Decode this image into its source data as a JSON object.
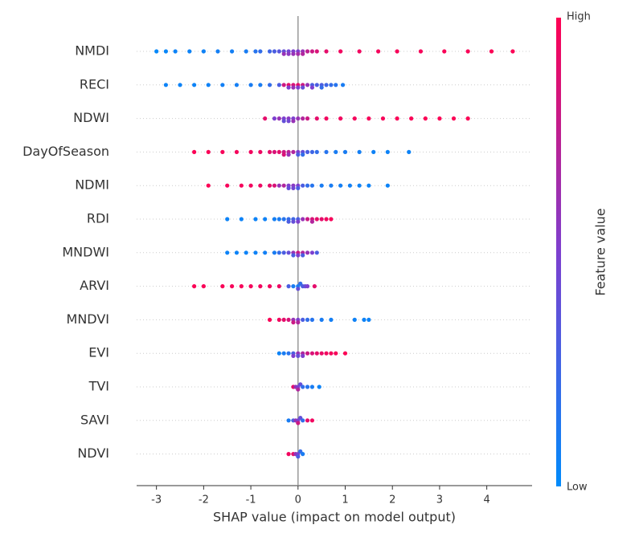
{
  "chart_data": {
    "type": "beeswarm",
    "x_label": "SHAP value (impact on model output)",
    "colorbar_label": "Feature value",
    "colorbar_high": "High",
    "colorbar_low": "Low",
    "colormap": [
      "#008bfb",
      "#7d3fcf",
      "#ff0052"
    ],
    "xlim": [
      -3.42,
      4.96
    ],
    "xticks": [
      -3,
      -2,
      -1,
      0,
      1,
      2,
      3,
      4
    ],
    "grid": true,
    "series": [
      {
        "name": "NMDI",
        "values": [
          -3.0,
          -2.8,
          -2.6,
          -2.3,
          -2.0,
          -1.7,
          -1.4,
          -1.1,
          -0.9,
          -0.8,
          -0.6,
          -0.5,
          -0.4,
          -0.3,
          -0.3,
          -0.2,
          -0.2,
          -0.1,
          -0.1,
          0,
          0,
          0.1,
          0.1,
          0.2,
          0.3,
          0.4,
          0.6,
          0.9,
          1.3,
          1.7,
          2.1,
          2.6,
          3.1,
          3.6,
          4.1,
          4.55
        ],
        "feature_values": [
          0.02,
          0.03,
          0.05,
          0.05,
          0.06,
          0.08,
          0.08,
          0.1,
          0.15,
          0.2,
          0.25,
          0.3,
          0.35,
          0.4,
          0.6,
          0.45,
          0.55,
          0.5,
          0.6,
          0.5,
          0.65,
          0.6,
          0.7,
          0.75,
          0.8,
          0.85,
          0.9,
          0.95,
          0.95,
          0.96,
          0.97,
          0.97,
          0.98,
          0.98,
          0.99,
          0.99
        ]
      },
      {
        "name": "RECI",
        "values": [
          -2.8,
          -2.5,
          -2.2,
          -1.9,
          -1.6,
          -1.3,
          -1.0,
          -0.8,
          -0.6,
          -0.4,
          -0.3,
          -0.2,
          -0.2,
          -0.1,
          -0.1,
          0,
          0,
          0.1,
          0.1,
          0.2,
          0.3,
          0.3,
          0.4,
          0.5,
          0.5,
          0.6,
          0.7,
          0.8,
          0.95
        ],
        "feature_values": [
          0.05,
          0.05,
          0.05,
          0.06,
          0.07,
          0.08,
          0.1,
          0.1,
          0.2,
          0.3,
          0.8,
          0.9,
          0.5,
          0.85,
          0.6,
          0.9,
          0.5,
          0.8,
          0.4,
          0.6,
          0.3,
          0.5,
          0.3,
          0.3,
          0.2,
          0.25,
          0.2,
          0.15,
          0.1
        ]
      },
      {
        "name": "NDWI",
        "values": [
          -0.7,
          -0.5,
          -0.4,
          -0.3,
          -0.3,
          -0.2,
          -0.2,
          -0.1,
          -0.1,
          0,
          0.1,
          0.2,
          0.4,
          0.6,
          0.9,
          1.2,
          1.5,
          1.8,
          2.1,
          2.4,
          2.7,
          3.0,
          3.3,
          3.6
        ],
        "feature_values": [
          0.9,
          0.5,
          0.6,
          0.5,
          0.4,
          0.55,
          0.45,
          0.5,
          0.6,
          0.6,
          0.7,
          0.8,
          0.9,
          0.95,
          0.95,
          0.96,
          0.97,
          0.97,
          0.98,
          0.98,
          0.99,
          0.99,
          0.99,
          0.99
        ]
      },
      {
        "name": "DayOfSeason",
        "values": [
          -2.2,
          -1.9,
          -1.6,
          -1.3,
          -1.0,
          -0.8,
          -0.6,
          -0.5,
          -0.4,
          -0.3,
          -0.3,
          -0.2,
          -0.2,
          -0.1,
          0,
          0,
          0.1,
          0.1,
          0.2,
          0.3,
          0.4,
          0.6,
          0.8,
          1.0,
          1.3,
          1.6,
          1.9,
          2.35
        ],
        "feature_values": [
          0.99,
          0.98,
          0.97,
          0.96,
          0.95,
          0.93,
          0.9,
          0.85,
          0.9,
          0.8,
          0.85,
          0.75,
          0.6,
          0.7,
          0.5,
          0.3,
          0.4,
          0.2,
          0.3,
          0.25,
          0.2,
          0.15,
          0.1,
          0.1,
          0.08,
          0.06,
          0.05,
          0.05
        ]
      },
      {
        "name": "NDMI",
        "values": [
          -1.9,
          -1.5,
          -1.2,
          -1.0,
          -0.8,
          -0.6,
          -0.5,
          -0.4,
          -0.3,
          -0.2,
          -0.2,
          -0.1,
          -0.1,
          0,
          0,
          0.1,
          0.2,
          0.3,
          0.5,
          0.7,
          0.9,
          1.1,
          1.3,
          1.5,
          1.9
        ],
        "feature_values": [
          0.99,
          0.97,
          0.96,
          0.95,
          0.93,
          0.9,
          0.85,
          0.6,
          0.7,
          0.5,
          0.4,
          0.55,
          0.45,
          0.5,
          0.3,
          0.3,
          0.2,
          0.15,
          0.1,
          0.1,
          0.08,
          0.07,
          0.06,
          0.05,
          0.05
        ]
      },
      {
        "name": "RDI",
        "values": [
          -1.5,
          -1.2,
          -0.9,
          -0.7,
          -0.5,
          -0.4,
          -0.3,
          -0.2,
          -0.2,
          -0.1,
          -0.1,
          0,
          0,
          0.1,
          0.2,
          0.3,
          0.3,
          0.4,
          0.5,
          0.6,
          0.7
        ],
        "feature_values": [
          0.05,
          0.05,
          0.05,
          0.06,
          0.08,
          0.1,
          0.15,
          0.2,
          0.3,
          0.25,
          0.4,
          0.3,
          0.5,
          0.6,
          0.8,
          0.85,
          0.7,
          0.9,
          0.9,
          0.95,
          0.97
        ]
      },
      {
        "name": "MNDWI",
        "values": [
          -1.5,
          -1.3,
          -1.1,
          -0.9,
          -0.7,
          -0.5,
          -0.4,
          -0.3,
          -0.2,
          -0.1,
          -0.1,
          0,
          0,
          0.1,
          0.1,
          0.2,
          0.3,
          0.4
        ],
        "feature_values": [
          0.05,
          0.05,
          0.05,
          0.06,
          0.07,
          0.1,
          0.2,
          0.3,
          0.4,
          0.6,
          0.3,
          0.8,
          0.5,
          0.7,
          0.3,
          0.6,
          0.5,
          0.3
        ]
      },
      {
        "name": "ARVI",
        "values": [
          -2.2,
          -2.0,
          -1.6,
          -1.4,
          -1.2,
          -1.0,
          -0.8,
          -0.6,
          -0.4,
          -0.2,
          -0.1,
          0,
          0,
          0.05,
          0.1,
          0.15,
          0.2,
          0.35
        ],
        "feature_values": [
          0.99,
          0.98,
          0.98,
          0.97,
          0.97,
          0.96,
          0.95,
          0.95,
          0.93,
          0.3,
          0.1,
          0.1,
          0.4,
          0.2,
          0.3,
          0.4,
          0.5,
          0.9
        ]
      },
      {
        "name": "MNDVI",
        "values": [
          -0.6,
          -0.4,
          -0.3,
          -0.2,
          -0.1,
          -0.1,
          0,
          0,
          0.1,
          0.2,
          0.3,
          0.5,
          0.7,
          1.2,
          1.4,
          1.5
        ],
        "feature_values": [
          0.98,
          0.95,
          0.9,
          0.85,
          0.6,
          0.8,
          0.5,
          0.7,
          0.3,
          0.2,
          0.15,
          0.1,
          0.08,
          0.06,
          0.05,
          0.05
        ]
      },
      {
        "name": "EVI",
        "values": [
          -0.4,
          -0.3,
          -0.2,
          -0.1,
          -0.1,
          0,
          0,
          0.1,
          0.1,
          0.2,
          0.3,
          0.4,
          0.5,
          0.6,
          0.7,
          0.8,
          1.0
        ],
        "feature_values": [
          0.05,
          0.1,
          0.15,
          0.3,
          0.5,
          0.6,
          0.4,
          0.7,
          0.5,
          0.8,
          0.85,
          0.9,
          0.92,
          0.95,
          0.96,
          0.97,
          0.99
        ]
      },
      {
        "name": "TVI",
        "values": [
          -0.1,
          -0.05,
          0,
          0,
          0.05,
          0.1,
          0.2,
          0.3,
          0.45
        ],
        "feature_values": [
          0.9,
          0.6,
          0.5,
          0.7,
          0.4,
          0.2,
          0.15,
          0.1,
          0.05
        ]
      },
      {
        "name": "SAVI",
        "values": [
          -0.2,
          -0.1,
          -0.05,
          0,
          0,
          0.05,
          0.1,
          0.2,
          0.3
        ],
        "feature_values": [
          0.1,
          0.3,
          0.6,
          0.5,
          0.8,
          0.4,
          0.2,
          0.9,
          0.95
        ]
      },
      {
        "name": "NDVI",
        "values": [
          -0.2,
          -0.1,
          -0.05,
          0,
          0,
          0.05,
          0.1
        ],
        "feature_values": [
          0.95,
          0.9,
          0.6,
          0.5,
          0.3,
          0.2,
          0.1
        ]
      }
    ]
  }
}
